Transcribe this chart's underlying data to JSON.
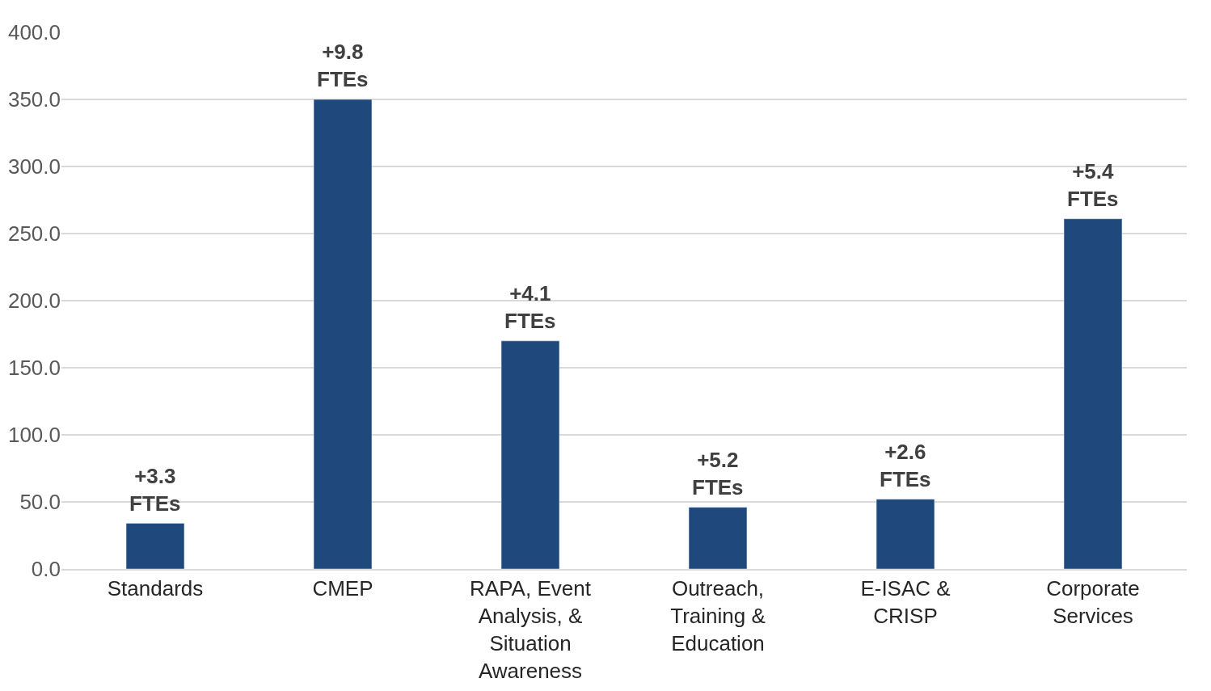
{
  "chart_data": {
    "type": "bar",
    "categories": [
      "Standards",
      "CMEP",
      "RAPA, Event Analysis, & Situation Awareness",
      "Outreach, Training & Education",
      "E-ISAC & CRISP",
      "Corporate Services"
    ],
    "values": [
      34,
      350,
      170,
      46,
      52,
      261
    ],
    "color": "#1f497d",
    "ylim": [
      0,
      400
    ],
    "yticks": [
      {
        "value": 0,
        "label": "0.0"
      },
      {
        "value": 50,
        "label": "50.0"
      },
      {
        "value": 100,
        "label": "100.0"
      },
      {
        "value": 150,
        "label": "150.0"
      },
      {
        "value": 200,
        "label": "200.0"
      },
      {
        "value": 250,
        "label": "250.0"
      },
      {
        "value": 300,
        "label": "300.0"
      },
      {
        "value": 350,
        "label": "350.0"
      },
      {
        "value": 400,
        "label": "400.0"
      }
    ],
    "grid": "y",
    "annotations": [
      {
        "text": "+3.3\nFTEs",
        "x": "Standards",
        "y": 34
      },
      {
        "text": "+9.8\nFTEs",
        "x": "CMEP",
        "y": 350
      },
      {
        "text": "+4.1\nFTEs",
        "x": "RAPA, Event Analysis, & Situation Awareness",
        "y": 170
      },
      {
        "text": "+5.2\nFTEs",
        "x": "Outreach, Training & Education",
        "y": 46
      },
      {
        "text": "+2.6\nFTEs",
        "x": "E-ISAC & CRISP",
        "y": 52
      },
      {
        "text": "+5.4\nFTEs",
        "x": "Corporate Services",
        "y": 261
      }
    ]
  }
}
